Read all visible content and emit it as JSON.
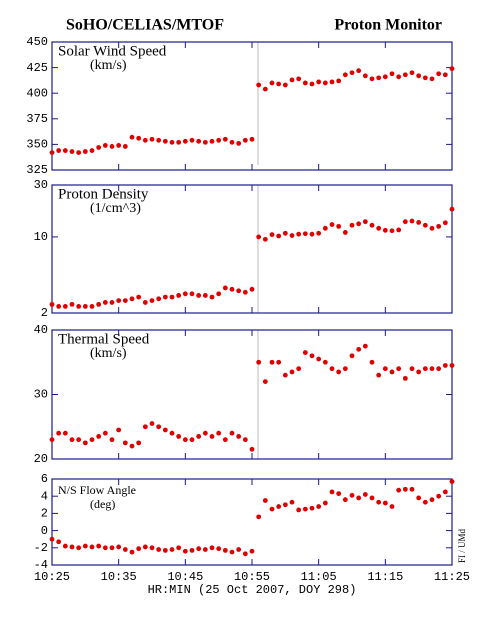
{
  "header": {
    "title_left": "SoHO/CELIAS/MTOF",
    "title_right": "Proton Monitor",
    "x_label": "HR:MIN (25 Oct 2007, DOY 298)",
    "credit": "FI / UMd"
  },
  "chart_data": [
    {
      "type": "scatter",
      "title": "Solar Wind Speed",
      "units": "(km/s)",
      "color": "#e00000",
      "x": [
        0,
        1,
        2,
        3,
        4,
        5,
        6,
        7,
        8,
        9,
        10,
        11,
        12,
        13,
        14,
        15,
        16,
        17,
        18,
        19,
        20,
        21,
        22,
        23,
        24,
        25,
        26,
        27,
        28,
        29,
        30,
        31,
        32,
        33,
        34,
        35,
        36,
        37,
        38,
        39,
        40,
        41,
        42,
        43,
        44,
        45,
        46,
        47,
        48,
        49,
        50,
        51,
        52,
        53,
        54,
        55,
        56,
        57,
        58,
        59,
        60
      ],
      "values": [
        342,
        344,
        344,
        343,
        342,
        343,
        344,
        347,
        349,
        348,
        349,
        348,
        357,
        356,
        354,
        355,
        354,
        353,
        352,
        352,
        353,
        354,
        353,
        352,
        353,
        354,
        355,
        352,
        351,
        354,
        355,
        408,
        404,
        410,
        409,
        408,
        413,
        414,
        410,
        409,
        411,
        410,
        411,
        412,
        418,
        420,
        422,
        417,
        414,
        415,
        416,
        419,
        416,
        418,
        420,
        417,
        415,
        414,
        419,
        418,
        424
      ],
      "xlim": [
        0,
        60
      ],
      "xticks": [
        0,
        10,
        20,
        30,
        40,
        50,
        60
      ],
      "ylim": [
        325,
        450
      ],
      "yticks": [
        325,
        350,
        375,
        400,
        425,
        450
      ]
    },
    {
      "type": "scatter",
      "title": "Proton Density",
      "units": "(1/cm^3)",
      "color": "#e00000",
      "yscale": "log",
      "x": [
        0,
        1,
        2,
        3,
        4,
        5,
        6,
        7,
        8,
        9,
        10,
        11,
        12,
        13,
        14,
        15,
        16,
        17,
        18,
        19,
        20,
        21,
        22,
        23,
        24,
        25,
        26,
        27,
        28,
        29,
        30,
        31,
        32,
        33,
        34,
        35,
        36,
        37,
        38,
        39,
        40,
        41,
        42,
        43,
        44,
        45,
        46,
        47,
        48,
        49,
        50,
        51,
        52,
        53,
        54,
        55,
        56,
        57,
        58,
        59,
        60
      ],
      "values": [
        2.4,
        2.3,
        2.3,
        2.4,
        2.3,
        2.3,
        2.3,
        2.4,
        2.5,
        2.5,
        2.6,
        2.6,
        2.7,
        2.8,
        2.5,
        2.6,
        2.7,
        2.8,
        2.8,
        2.9,
        3.0,
        3.0,
        2.9,
        2.9,
        2.8,
        3.0,
        3.4,
        3.3,
        3.2,
        3.1,
        3.3,
        10,
        9.5,
        10.5,
        10.2,
        10.8,
        10.3,
        10.6,
        10.7,
        10.6,
        10.8,
        12.0,
        13.0,
        12.5,
        11.0,
        12.8,
        13.2,
        13.8,
        12.8,
        12.0,
        11.5,
        11.4,
        11.6,
        13.8,
        14.0,
        13.6,
        12.8,
        12.0,
        12.5,
        13.5,
        18.0
      ],
      "xlim": [
        0,
        60
      ],
      "xticks": [
        0,
        10,
        20,
        30,
        40,
        50,
        60
      ],
      "ylim": [
        2,
        30
      ],
      "yticks": [
        2,
        10,
        30
      ]
    },
    {
      "type": "scatter",
      "title": "Thermal Speed",
      "units": "(km/s)",
      "color": "#e00000",
      "x": [
        0,
        1,
        2,
        3,
        4,
        5,
        6,
        7,
        8,
        9,
        10,
        11,
        12,
        13,
        14,
        15,
        16,
        17,
        18,
        19,
        20,
        21,
        22,
        23,
        24,
        25,
        26,
        27,
        28,
        29,
        30,
        31,
        32,
        33,
        34,
        35,
        36,
        37,
        38,
        39,
        40,
        41,
        42,
        43,
        44,
        45,
        46,
        47,
        48,
        49,
        50,
        51,
        52,
        53,
        54,
        55,
        56,
        57,
        58,
        59,
        60
      ],
      "values": [
        23,
        24,
        24,
        23,
        23,
        22.5,
        23,
        23.5,
        24,
        23,
        24.5,
        22.5,
        22,
        22.5,
        25,
        25.5,
        25,
        24.5,
        24,
        23.5,
        23,
        23,
        23.5,
        24,
        23.5,
        24,
        23,
        24,
        23.5,
        23,
        21.5,
        35,
        32,
        35,
        35,
        33,
        33.5,
        34,
        36.5,
        36,
        35.5,
        35,
        34,
        33.5,
        34,
        36,
        37,
        37.5,
        35,
        33,
        34,
        33.5,
        34,
        32.5,
        34,
        33.5,
        34,
        34,
        34,
        34.5,
        34.5
      ],
      "xlim": [
        0,
        60
      ],
      "xticks": [
        0,
        10,
        20,
        30,
        40,
        50,
        60
      ],
      "ylim": [
        20,
        40
      ],
      "yticks": [
        20,
        30,
        40
      ]
    },
    {
      "type": "scatter",
      "title": "N/S Flow Angle",
      "units": "(deg)",
      "color": "#e00000",
      "x": [
        0,
        1,
        2,
        3,
        4,
        5,
        6,
        7,
        8,
        9,
        10,
        11,
        12,
        13,
        14,
        15,
        16,
        17,
        18,
        19,
        20,
        21,
        22,
        23,
        24,
        25,
        26,
        27,
        28,
        29,
        30,
        31,
        32,
        33,
        34,
        35,
        36,
        37,
        38,
        39,
        40,
        41,
        42,
        43,
        44,
        45,
        46,
        47,
        48,
        49,
        50,
        51,
        52,
        53,
        54,
        55,
        56,
        57,
        58,
        59,
        60
      ],
      "values": [
        -1,
        -1.3,
        -1.8,
        -1.9,
        -2,
        -1.8,
        -1.9,
        -1.8,
        -2,
        -2,
        -1.9,
        -2.2,
        -2.5,
        -2.1,
        -1.9,
        -2,
        -2.2,
        -2.3,
        -2.2,
        -2,
        -2.4,
        -2.3,
        -2.1,
        -2.2,
        -2,
        -2.1,
        -2.3,
        -2.5,
        -2.2,
        -2.7,
        -2.4,
        1.6,
        3.5,
        2.5,
        2.8,
        3,
        3.3,
        2.4,
        2.5,
        2.6,
        2.8,
        3.2,
        4.5,
        4.3,
        3.6,
        4.1,
        3.8,
        4.2,
        3.8,
        3.3,
        3.2,
        2.8,
        4.7,
        4.8,
        4.8,
        3.8,
        3.3,
        3.6,
        4.0,
        4.5,
        5.7
      ],
      "xlim": [
        0,
        60
      ],
      "xticks": [
        {
          "value": 0,
          "label": "10:25"
        },
        {
          "value": 10,
          "label": "10:35"
        },
        {
          "value": 20,
          "label": "10:45"
        },
        {
          "value": 30,
          "label": "10:55"
        },
        {
          "value": 40,
          "label": "11:05"
        },
        {
          "value": 50,
          "label": "11:15"
        },
        {
          "value": 60,
          "label": "11:25"
        }
      ],
      "ylim": [
        -4,
        6
      ],
      "yticks": [
        -4,
        -2,
        0,
        2,
        4,
        6
      ]
    }
  ]
}
